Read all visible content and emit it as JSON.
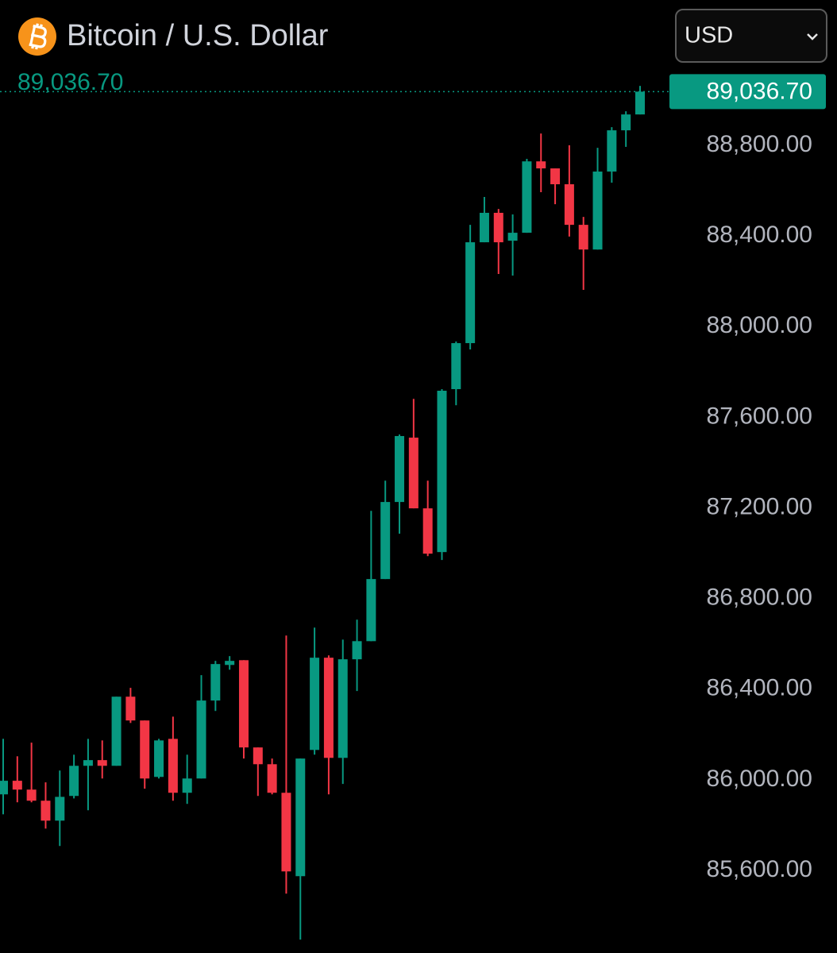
{
  "chart_data": {
    "type": "candlestick",
    "title": "Bitcoin / U.S. Dollar",
    "currency": "USD",
    "last_price": {
      "value": 89036.7,
      "label": "89,036.70"
    },
    "up_color": "#089981",
    "down_color": "#f23645",
    "ylim": [
      85236,
      89441
    ],
    "yticks": [
      {
        "value": 85600,
        "label": "85,600.00"
      },
      {
        "value": 86000,
        "label": "86,000.00"
      },
      {
        "value": 86400,
        "label": "86,400.00"
      },
      {
        "value": 86800,
        "label": "86,800.00"
      },
      {
        "value": 87200,
        "label": "87,200.00"
      },
      {
        "value": 87600,
        "label": "87,600.00"
      },
      {
        "value": 88000,
        "label": "88,000.00"
      },
      {
        "value": 88400,
        "label": "88,400.00"
      },
      {
        "value": 88800,
        "label": "88,800.00"
      }
    ],
    "open": [
      85936,
      85996,
      85957,
      85908,
      85820,
      85929,
      86062,
      86087,
      86062,
      86367,
      86262,
      86013,
      86181,
      85943,
      86006,
      86350,
      86507,
      86528,
      86143,
      86069,
      85943,
      85575,
      86132,
      86539,
      86097,
      86532,
      86612,
      86886,
      87226,
      87510,
      87198,
      87005,
      87724,
      87927,
      88372,
      88502,
      88379,
      88414,
      88729,
      88698,
      88628,
      88449,
      88340,
      88684,
      88866,
      88936
    ],
    "high": [
      86181,
      86104,
      86164,
      85989,
      86041,
      86111,
      86181,
      86174,
      86367,
      86406,
      86262,
      86181,
      86279,
      86111,
      86462,
      86525,
      86546,
      86528,
      86143,
      86094,
      86637,
      86094,
      86672,
      86549,
      86619,
      86707,
      87187,
      87320,
      87524,
      87681,
      87320,
      87724,
      87934,
      88449,
      88572,
      88519,
      88495,
      88740,
      88852,
      88698,
      88800,
      88484,
      88789,
      88880,
      88950,
      89062
    ],
    "low": [
      85848,
      85901,
      85901,
      85785,
      85708,
      85918,
      85866,
      86006,
      86062,
      86251,
      85961,
      86006,
      85908,
      85894,
      86006,
      86304,
      86486,
      86094,
      85929,
      85936,
      85498,
      85295,
      86111,
      85936,
      85982,
      86392,
      86612,
      86886,
      87086,
      87198,
      86987,
      86970,
      87653,
      87899,
      88372,
      88232,
      88225,
      88414,
      88593,
      88540,
      88397,
      88162,
      88340,
      88635,
      88793,
      88936
    ],
    "close": [
      85996,
      85957,
      85908,
      85820,
      85925,
      86062,
      86087,
      86062,
      86367,
      86262,
      86006,
      86174,
      85943,
      86006,
      86350,
      86511,
      86525,
      86143,
      86069,
      85943,
      85596,
      86094,
      86539,
      86097,
      86532,
      86612,
      86886,
      87226,
      87517,
      87198,
      86998,
      87717,
      87927,
      88372,
      88502,
      88372,
      88414,
      88729,
      88698,
      88628,
      88449,
      88340,
      88684,
      88866,
      88936,
      89036.7
    ]
  }
}
